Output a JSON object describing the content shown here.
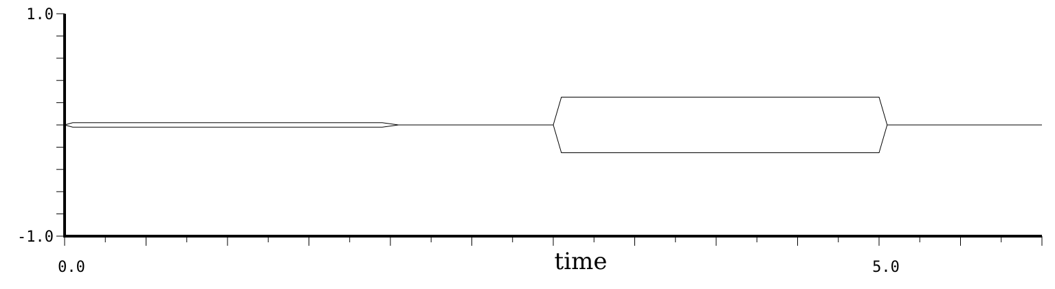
{
  "chart_data": {
    "type": "line",
    "title": "",
    "xlabel": "time",
    "ylabel": "",
    "xlim": [
      0.0,
      6.0
    ],
    "ylim": [
      -1.0,
      1.0
    ],
    "x_tick_labels": [
      {
        "value": 0.0,
        "label": "0.0"
      },
      {
        "value": 5.0,
        "label": "5.0"
      }
    ],
    "y_tick_labels": [
      {
        "value": 1.0,
        "label": "1.0"
      },
      {
        "value": -1.0,
        "label": "-1.0"
      }
    ],
    "x_major_step": 0.5,
    "x_minor_step": 0.25,
    "y_minor_step": 0.2,
    "grid": false,
    "envelope": {
      "x": [
        0.0,
        0.05,
        1.95,
        2.05,
        3.0,
        3.05,
        5.0,
        5.05,
        6.0
      ],
      "upper": [
        0.0,
        0.02,
        0.02,
        0.0,
        0.0,
        0.25,
        0.25,
        0.0,
        0.0
      ],
      "lower": [
        0.0,
        -0.02,
        -0.02,
        0.0,
        0.0,
        -0.25,
        -0.25,
        0.0,
        0.0
      ]
    }
  }
}
